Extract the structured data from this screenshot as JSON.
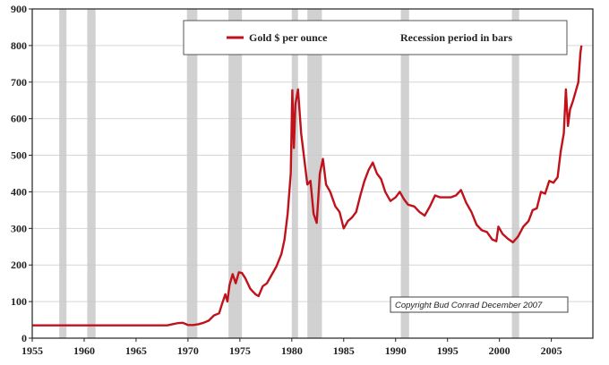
{
  "chart_data": {
    "type": "line",
    "title": "",
    "xlabel": "",
    "ylabel": "",
    "xlim": [
      1955,
      2009
    ],
    "ylim": [
      0,
      900
    ],
    "x_ticks": [
      1955,
      1960,
      1965,
      1970,
      1975,
      1980,
      1985,
      1990,
      1995,
      2000,
      2005
    ],
    "y_ticks": [
      0,
      100,
      200,
      300,
      400,
      500,
      600,
      700,
      800,
      900
    ],
    "grid": true,
    "legend_position": "top",
    "series": [
      {
        "name": "Gold $ per ounce",
        "color": "#c0121b",
        "points": [
          [
            1955,
            35
          ],
          [
            1960,
            35
          ],
          [
            1965,
            35
          ],
          [
            1968,
            35
          ],
          [
            1968.5,
            38
          ],
          [
            1969,
            41
          ],
          [
            1969.5,
            42
          ],
          [
            1970,
            36
          ],
          [
            1970.5,
            36
          ],
          [
            1971,
            38
          ],
          [
            1971.5,
            42
          ],
          [
            1972,
            48
          ],
          [
            1972.5,
            62
          ],
          [
            1973,
            68
          ],
          [
            1973.3,
            95
          ],
          [
            1973.6,
            120
          ],
          [
            1973.8,
            100
          ],
          [
            1974,
            145
          ],
          [
            1974.3,
            175
          ],
          [
            1974.6,
            150
          ],
          [
            1974.9,
            180
          ],
          [
            1975.2,
            178
          ],
          [
            1975.5,
            165
          ],
          [
            1976,
            135
          ],
          [
            1976.5,
            120
          ],
          [
            1976.8,
            115
          ],
          [
            1977.2,
            142
          ],
          [
            1977.6,
            150
          ],
          [
            1978,
            170
          ],
          [
            1978.5,
            195
          ],
          [
            1979,
            230
          ],
          [
            1979.3,
            270
          ],
          [
            1979.6,
            340
          ],
          [
            1979.9,
            450
          ],
          [
            1980.05,
            678
          ],
          [
            1980.2,
            520
          ],
          [
            1980.35,
            640
          ],
          [
            1980.6,
            680
          ],
          [
            1980.9,
            560
          ],
          [
            1981.2,
            490
          ],
          [
            1981.5,
            420
          ],
          [
            1981.8,
            430
          ],
          [
            1982.1,
            340
          ],
          [
            1982.4,
            315
          ],
          [
            1982.7,
            450
          ],
          [
            1983,
            490
          ],
          [
            1983.3,
            420
          ],
          [
            1983.7,
            400
          ],
          [
            1984.2,
            360
          ],
          [
            1984.6,
            345
          ],
          [
            1985,
            300
          ],
          [
            1985.4,
            320
          ],
          [
            1985.8,
            330
          ],
          [
            1986.2,
            345
          ],
          [
            1986.6,
            390
          ],
          [
            1987,
            430
          ],
          [
            1987.4,
            460
          ],
          [
            1987.8,
            480
          ],
          [
            1988.2,
            450
          ],
          [
            1988.6,
            435
          ],
          [
            1989,
            400
          ],
          [
            1989.5,
            375
          ],
          [
            1990,
            385
          ],
          [
            1990.4,
            400
          ],
          [
            1990.8,
            380
          ],
          [
            1991.2,
            365
          ],
          [
            1991.8,
            360
          ],
          [
            1992.3,
            345
          ],
          [
            1992.8,
            335
          ],
          [
            1993.3,
            360
          ],
          [
            1993.8,
            390
          ],
          [
            1994.3,
            385
          ],
          [
            1994.8,
            385
          ],
          [
            1995.3,
            385
          ],
          [
            1995.8,
            390
          ],
          [
            1996.3,
            405
          ],
          [
            1996.8,
            370
          ],
          [
            1997.3,
            345
          ],
          [
            1997.8,
            310
          ],
          [
            1998.3,
            295
          ],
          [
            1998.8,
            290
          ],
          [
            1999.3,
            270
          ],
          [
            1999.7,
            265
          ],
          [
            1999.9,
            305
          ],
          [
            2000.3,
            285
          ],
          [
            2000.8,
            272
          ],
          [
            2001.3,
            262
          ],
          [
            2001.8,
            278
          ],
          [
            2002.3,
            305
          ],
          [
            2002.8,
            320
          ],
          [
            2003.2,
            350
          ],
          [
            2003.6,
            355
          ],
          [
            2004,
            400
          ],
          [
            2004.4,
            395
          ],
          [
            2004.8,
            430
          ],
          [
            2005.2,
            425
          ],
          [
            2005.6,
            440
          ],
          [
            2005.9,
            510
          ],
          [
            2006.2,
            560
          ],
          [
            2006.4,
            680
          ],
          [
            2006.6,
            580
          ],
          [
            2006.8,
            625
          ],
          [
            2007.1,
            650
          ],
          [
            2007.4,
            680
          ],
          [
            2007.6,
            700
          ],
          [
            2007.8,
            780
          ],
          [
            2007.9,
            800
          ]
        ]
      }
    ],
    "recession_periods": [
      [
        1957.6,
        1958.3
      ],
      [
        1960.3,
        1961.1
      ],
      [
        1969.9,
        1970.9
      ],
      [
        1973.9,
        1975.2
      ],
      [
        1980.0,
        1980.6
      ],
      [
        1981.5,
        1982.9
      ],
      [
        1990.5,
        1991.3
      ],
      [
        2001.2,
        2001.9
      ]
    ],
    "recession_label": "Recession period in bars",
    "annotation": "Copyright Bud Conrad December 2007"
  }
}
